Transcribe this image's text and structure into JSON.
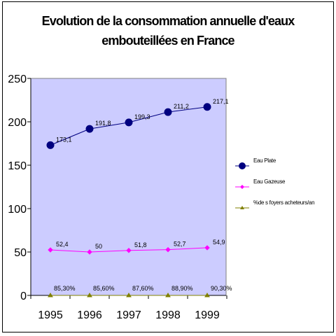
{
  "chart_data": {
    "type": "line",
    "title_lines": [
      "Evolution de la consommation annuelle d'eaux",
      "embouteillées en France"
    ],
    "categories": [
      "1995",
      "1996",
      "1997",
      "1998",
      "1999"
    ],
    "ylim": [
      0,
      250
    ],
    "yticks": [
      "0",
      "50",
      "100",
      "150",
      "200",
      "250"
    ],
    "grid": false,
    "plot_background": "#ccccff",
    "legend_position": "right",
    "series": [
      {
        "name": "Eau Plate",
        "values": [
          173.1,
          191.8,
          199.3,
          211.2,
          217.1
        ],
        "labels": [
          "173,1",
          "191,8",
          "199,3",
          "211,2",
          "217,1"
        ],
        "color": "#000080",
        "marker": "circle"
      },
      {
        "name": "Eau Gazeuse",
        "values": [
          52.4,
          50,
          51.8,
          52.7,
          54.9
        ],
        "labels": [
          "52,4",
          "50",
          "51,8",
          "52,7",
          "54,9"
        ],
        "color": "#ff00ff",
        "marker": "diamond"
      },
      {
        "name": "%de s foyers acheteurs/an",
        "values": [
          0.853,
          0.856,
          0.876,
          0.889,
          0.903
        ],
        "labels": [
          "85,30%",
          "85,60%",
          "87,60%",
          "88,90%",
          "90,30%"
        ],
        "color": "#808000",
        "marker": "triangle"
      }
    ]
  }
}
